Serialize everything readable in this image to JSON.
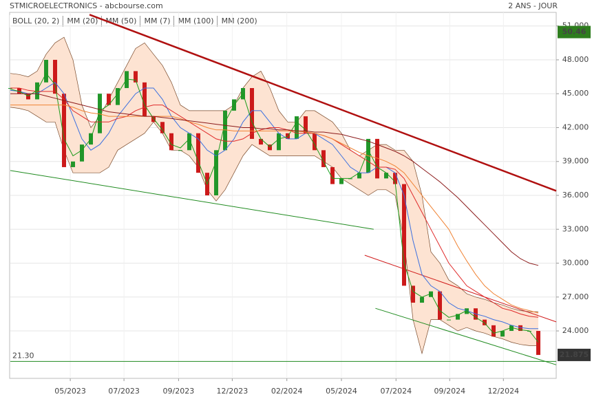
{
  "chart_data": {
    "type": "stock",
    "title": "STMICROELECTRONICS - abcbourse.com",
    "subtitle": "2 ANS - JOUR",
    "x": [
      0,
      1,
      2,
      3,
      4,
      5,
      6,
      7,
      8,
      9,
      10,
      11,
      12,
      13,
      14,
      15,
      16,
      17,
      18,
      19,
      20,
      21,
      22,
      23,
      24,
      25,
      26,
      27,
      28,
      29,
      30,
      31,
      32,
      33,
      34,
      35,
      36,
      37,
      38,
      39,
      40,
      41,
      42,
      43,
      44,
      45,
      46,
      47,
      48,
      49,
      50,
      51,
      52,
      53,
      54,
      55,
      56,
      57,
      58,
      59
    ],
    "xlim": [
      0,
      61
    ],
    "xticks": [
      {
        "value": 6.7,
        "label": "05/2023"
      },
      {
        "value": 12.7,
        "label": "07/2023"
      },
      {
        "value": 18.8,
        "label": "09/2023"
      },
      {
        "value": 24.8,
        "label": "12/2023"
      },
      {
        "value": 30.9,
        "label": "02/2024"
      },
      {
        "value": 37.0,
        "label": "05/2024"
      },
      {
        "value": 43.1,
        "label": "07/2024"
      },
      {
        "value": 49.1,
        "label": "09/2024"
      },
      {
        "value": 55.1,
        "label": "12/2024"
      }
    ],
    "ylim": [
      19.8,
      52.2
    ],
    "yticks": [
      {
        "value": 24,
        "label": "24.000"
      },
      {
        "value": 27,
        "label": "27.000"
      },
      {
        "value": 30,
        "label": "30.000"
      },
      {
        "value": 33,
        "label": "33.000"
      },
      {
        "value": 36,
        "label": "36.000"
      },
      {
        "value": 39,
        "label": "39.000"
      },
      {
        "value": 42,
        "label": "42.000"
      },
      {
        "value": 45,
        "label": "45.000"
      },
      {
        "value": 48,
        "label": "48.000"
      },
      {
        "value": 51,
        "label": "51.000"
      }
    ],
    "grid": true,
    "price": {
      "up_color": "#22962a",
      "down_color": "#cc1a1a",
      "values": [
        45.5,
        45,
        44.5,
        46,
        48,
        45,
        38.5,
        39,
        40.5,
        41.5,
        45,
        44,
        45.5,
        47,
        46,
        43,
        42.5,
        41.5,
        40,
        40,
        41.5,
        38,
        36,
        40,
        43.5,
        44.5,
        45.5,
        41,
        40.5,
        40,
        41.5,
        41,
        43,
        41.5,
        40,
        38.5,
        37,
        37.5,
        37.5,
        38,
        41,
        37.5,
        38,
        37,
        28,
        26.5,
        27,
        27.5,
        25,
        25,
        25.5,
        26,
        25,
        24.5,
        23.5,
        24,
        24.5,
        24,
        24,
        21.875
      ]
    },
    "bollinger": {
      "name": "BOLL (20, 2)",
      "color": "#7a4a2a",
      "fill": "#fde3d2",
      "upper": [
        46.8,
        46.7,
        46.5,
        47,
        48.5,
        49.5,
        50,
        48,
        44,
        42,
        43,
        44.5,
        46,
        47.5,
        49,
        49.5,
        48.5,
        47.5,
        46,
        44,
        43.5,
        43.5,
        43.5,
        43.5,
        43.5,
        44,
        45.5,
        46.5,
        47,
        45.5,
        43.5,
        42.5,
        42.5,
        43.5,
        43.5,
        43,
        42.5,
        41.5,
        40,
        39.5,
        40,
        40.5,
        40.5,
        40,
        40,
        39,
        36,
        31,
        30,
        28.5,
        28,
        27.3,
        27,
        26.8,
        26.5,
        26.3,
        26,
        25.8,
        25.7,
        25.7
      ],
      "lower": [
        43.8,
        43.7,
        43.5,
        43,
        42.5,
        42.5,
        40,
        38,
        38,
        38,
        38,
        38.5,
        40,
        40.5,
        41,
        41.5,
        42.5,
        41.5,
        40,
        40,
        39.5,
        38.5,
        36.5,
        35.5,
        36.5,
        38,
        39.5,
        40.5,
        40,
        39.5,
        39.5,
        39.5,
        39.5,
        39.5,
        39.5,
        39,
        38.5,
        37.5,
        37,
        36.5,
        36,
        36.5,
        36.5,
        36,
        32,
        25,
        22,
        25,
        25,
        24.5,
        24,
        24.3,
        24,
        23.8,
        23.5,
        23.3,
        23,
        22.8,
        22.7,
        22.7
      ]
    },
    "series": [
      {
        "name": "MM (20)",
        "color": "#3a6fe0",
        "values": [
          45.3,
          45.2,
          45,
          45,
          45.5,
          46,
          45,
          43,
          41,
          40,
          40.5,
          41.5,
          43,
          44,
          45,
          45.5,
          45.5,
          44.5,
          43,
          42,
          41.5,
          41,
          40,
          39.5,
          40,
          41,
          42.5,
          43.5,
          43.5,
          42.5,
          41.5,
          41,
          41,
          41.5,
          41.5,
          41,
          40.5,
          39.5,
          38.5,
          38,
          38,
          38.5,
          38.5,
          38,
          36,
          32,
          29,
          28,
          27.5,
          26.5,
          26,
          25.8,
          25.5,
          25.3,
          25,
          24.8,
          24.5,
          24.3,
          24.2,
          24.2
        ]
      },
      {
        "name": "MM (50)",
        "color": "#e02a2a",
        "values": [
          45.5,
          45.5,
          45.3,
          45.2,
          45.2,
          45.2,
          44.5,
          43.5,
          43,
          42.5,
          42.5,
          42.5,
          42.8,
          43,
          43.5,
          43.8,
          44,
          44,
          43.5,
          43,
          42.5,
          42,
          41.5,
          41,
          40.8,
          40.8,
          41,
          41.5,
          41.8,
          42,
          42,
          41.8,
          41.5,
          41.5,
          41.5,
          41.3,
          41,
          40.5,
          40,
          39.5,
          39,
          38.5,
          38.5,
          38.3,
          37.5,
          36,
          34.5,
          33,
          31.5,
          30,
          29,
          28,
          27.5,
          27,
          26.5,
          26,
          25.8,
          25.5,
          25.3,
          25.2
        ]
      },
      {
        "name": "MM (7)",
        "color": "#1a9a1a",
        "values": [
          45.4,
          45.2,
          44.8,
          45.3,
          46.8,
          45.8,
          41,
          39.5,
          40,
          41,
          43.5,
          44,
          45,
          46.3,
          46.2,
          44,
          42.8,
          41.8,
          40.5,
          40.2,
          41,
          39,
          37,
          39,
          42.5,
          44,
          45,
          42.5,
          41,
          40.3,
          41,
          41.2,
          42.5,
          41.8,
          40.5,
          39,
          37.5,
          37.5,
          37.5,
          38,
          40,
          38.5,
          38,
          37.2,
          30,
          27.5,
          27,
          27.3,
          25.8,
          25.2,
          25.4,
          25.8,
          25.2,
          24.7,
          23.8,
          24,
          24.3,
          24.1,
          24,
          23
        ]
      },
      {
        "name": "MM (100)",
        "color": "#f08232",
        "values": [
          44,
          44,
          44,
          44,
          44,
          44,
          44,
          43.8,
          43.5,
          43.3,
          43.2,
          43,
          43,
          43,
          43,
          43,
          43,
          43,
          43,
          42.8,
          42.5,
          42.3,
          42,
          41.8,
          41.8,
          41.7,
          41.7,
          41.7,
          41.7,
          41.7,
          41.7,
          41.7,
          41.7,
          41.6,
          41.5,
          41.3,
          41,
          40.6,
          40.2,
          39.8,
          39.5,
          39.3,
          39,
          38.6,
          38,
          37,
          36,
          35,
          34,
          33,
          31.5,
          30.2,
          29,
          28,
          27.3,
          26.8,
          26.3,
          26,
          25.8,
          25.6
        ]
      },
      {
        "name": "MM (200)",
        "color": "#8b1a1a",
        "values": [
          45,
          45,
          45,
          45,
          44.8,
          44.6,
          44.4,
          44.2,
          44,
          43.8,
          43.6,
          43.4,
          43.3,
          43.2,
          43.1,
          43,
          43,
          42.9,
          42.8,
          42.7,
          42.6,
          42.5,
          42.4,
          42.3,
          42.2,
          42.1,
          42,
          42,
          41.9,
          41.9,
          41.8,
          41.8,
          41.7,
          41.7,
          41.6,
          41.6,
          41.5,
          41.4,
          41.2,
          41,
          40.8,
          40.5,
          40.2,
          39.9,
          39.5,
          39,
          38.4,
          37.8,
          37.2,
          36.5,
          35.8,
          35,
          34.2,
          33.4,
          32.6,
          31.8,
          31,
          30.4,
          30,
          29.8
        ]
      }
    ],
    "trendlines": [
      {
        "color": "#b01010",
        "x": [
          8.85,
          61
        ],
        "y": [
          52.0,
          36.4
        ]
      },
      {
        "color": "#1e8a1e",
        "x": [
          0,
          40.6
        ],
        "y": [
          38.2,
          33.0
        ]
      },
      {
        "color": "#d01818",
        "x": [
          39.6,
          61
        ],
        "y": [
          30.7,
          24.8
        ]
      },
      {
        "color": "#1e8a1e",
        "x": [
          40.8,
          61
        ],
        "y": [
          26.0,
          21.0
        ]
      }
    ],
    "support": {
      "value": 21.3,
      "label": "21.30",
      "color": "#1e8a1e"
    },
    "price_tags": [
      {
        "value": 50.46,
        "color": "#2e7d1e"
      },
      {
        "value": 21.875,
        "color": "#333333"
      }
    ]
  }
}
